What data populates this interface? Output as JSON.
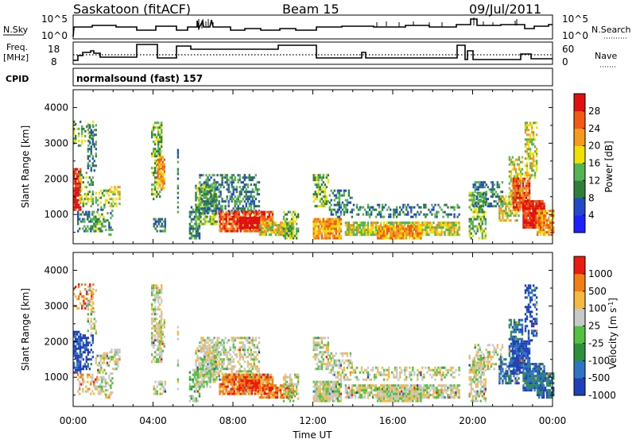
{
  "header": {
    "station": "Saskatoon (fitACF)",
    "beam": "Beam 15",
    "date": "09/Jul/2011"
  },
  "noise_panel": {
    "left_label": "N.Sky",
    "right_label": "N.Search",
    "left_ticks": [
      "10^5",
      "10^0"
    ],
    "right_ticks": [
      "10^5",
      "10^0"
    ]
  },
  "freq_panel": {
    "left_label_1": "Freq.",
    "left_label_2": "[MHz]",
    "right_label": "Nave",
    "left_ticks": [
      "18",
      "8"
    ],
    "right_ticks": [
      "60",
      "0"
    ]
  },
  "cpid": {
    "label": "CPID",
    "value": "normalsound (fast) 157"
  },
  "x_axis": {
    "label": "Time UT",
    "ticks": [
      "00:00",
      "04:00",
      "08:00",
      "12:00",
      "16:00",
      "20:00",
      "00:00"
    ]
  },
  "chart_data": [
    {
      "type": "heatmap",
      "name": "power",
      "ylabel": "Slant Range [km]",
      "ylim": [
        180,
        4500
      ],
      "yticks": [
        1000,
        2000,
        3000,
        4000
      ],
      "xlim_hours": [
        0,
        24
      ],
      "colorbar_label": "Power [dB]",
      "colorbar_ticks": [
        "28",
        "24",
        "20",
        "16",
        "12",
        "8",
        "4"
      ],
      "colors": [
        "#1f1fff",
        "#2449c8",
        "#2f7f3a",
        "#54b454",
        "#f0e000",
        "#f59a1e",
        "#f05a14",
        "#e01010"
      ]
    },
    {
      "type": "heatmap",
      "name": "velocity",
      "ylabel": "Slant Range [km]",
      "ylim": [
        180,
        4500
      ],
      "yticks": [
        1000,
        2000,
        3000,
        4000
      ],
      "xlim_hours": [
        0,
        24
      ],
      "colorbar_label": "Velocity [m s",
      "colorbar_label_exp": "-1",
      "colorbar_label_close": "]",
      "colorbar_ticks": [
        "1000",
        "500",
        "100",
        "25",
        "-25",
        "-100",
        "-500",
        "-1000"
      ],
      "colors": [
        "#2040b8",
        "#2d74c4",
        "#2f8f3a",
        "#54c040",
        "#c8c8c8",
        "#f5b840",
        "#f07f14",
        "#e81c10"
      ]
    }
  ]
}
